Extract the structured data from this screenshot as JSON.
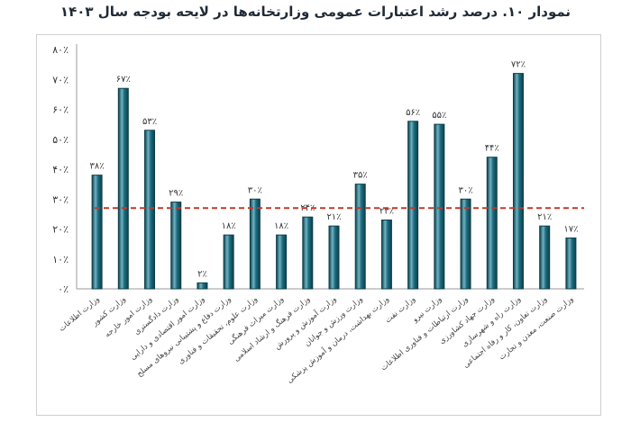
{
  "title": "نمودار ۱۰. درصد رشد اعتبارات عمومی وزارتخانه‌ها در لایحه بودجه سال ۱۴۰۳",
  "chart_data": {
    "type": "bar",
    "title": "نمودار ۱۰. درصد رشد اعتبارات عمومی وزارتخانه‌ها در لایحه بودجه سال ۱۴۰۳",
    "xlabel": "",
    "ylabel": "",
    "ylim": [
      0,
      80
    ],
    "yticks": [
      {
        "value": 0,
        "label": "۰٪"
      },
      {
        "value": 10,
        "label": "۱۰٪"
      },
      {
        "value": 20,
        "label": "۲۰٪"
      },
      {
        "value": 30,
        "label": "۳۰٪"
      },
      {
        "value": 40,
        "label": "۴۰٪"
      },
      {
        "value": 50,
        "label": "۵۰٪"
      },
      {
        "value": 60,
        "label": "۶۰٪"
      },
      {
        "value": 70,
        "label": "۷۰٪"
      },
      {
        "value": 80,
        "label": "۸۰٪"
      }
    ],
    "categories": [
      "وزارت اطلاعات",
      "وزارت کشور",
      "وزارت امور خارجه",
      "وزارت دادگستری",
      "وزارت امور اقتصادی و دارایی",
      "وزارت دفاع و پشتیبانی نیروهای مسلح",
      "وزارت علوم، تحقیقات و فناوری",
      "وزارت میراث فرهنگی",
      "وزارت فرهنگ و ارشاد اسلامی",
      "وزارت آموزش و پرورش",
      "وزارت ورزش و جوانان",
      "وزارت بهداشت، درمان و آموزش پزشکی",
      "وزارت نفت",
      "وزارت نیرو",
      "وزارت ارتباطات و فناوری اطلاعات",
      "وزارت جهاد کشاورزی",
      "وزارت راه و شهرسازی",
      "وزارت تعاون، کار و رفاه اجتماعی",
      "وزارت صنعت، معدن و تجارت"
    ],
    "values": [
      38,
      67,
      53,
      29,
      2,
      18,
      30,
      18,
      24,
      21,
      35,
      23,
      56,
      55,
      30,
      44,
      72,
      21,
      17
    ],
    "value_labels": [
      "۳۸٪",
      "۶۷٪",
      "۵۳٪",
      "۲۹٪",
      "۲٪",
      "۱۸٪",
      "۳۰٪",
      "۱۸٪",
      "۲۴٪",
      "۲۱٪",
      "۳۵٪",
      "۲۳٪",
      "۵۶٪",
      "۵۵٪",
      "۳۰٪",
      "۴۴٪",
      "۷۲٪",
      "۲۱٪",
      "۱۷٪"
    ],
    "average_line": 27,
    "grid": false,
    "colors": {
      "bar_fill": "#1e6d7f",
      "bar_edge": "#0d3f4b",
      "bar_highlight": "#6fb3c4",
      "average_line": "#c0392b",
      "axis": "#9a9a9a"
    }
  }
}
